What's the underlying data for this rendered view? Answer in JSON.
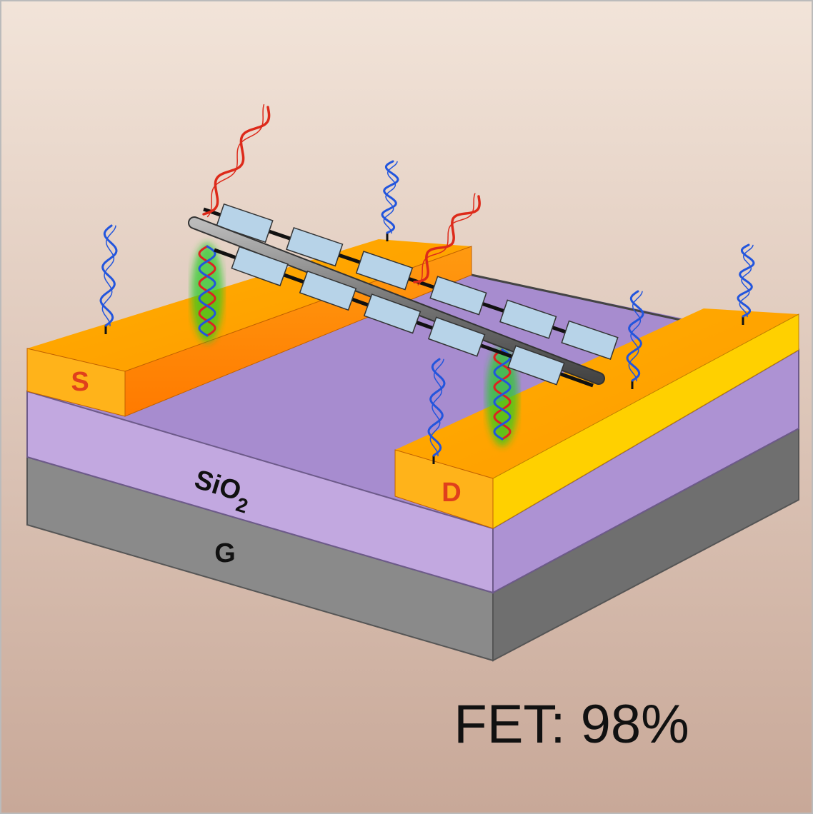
{
  "labels": {
    "source": "S",
    "drain": "D",
    "oxide": {
      "base": "SiO",
      "subscript": "2"
    },
    "gate": "G"
  },
  "caption": "FET: 98%"
}
